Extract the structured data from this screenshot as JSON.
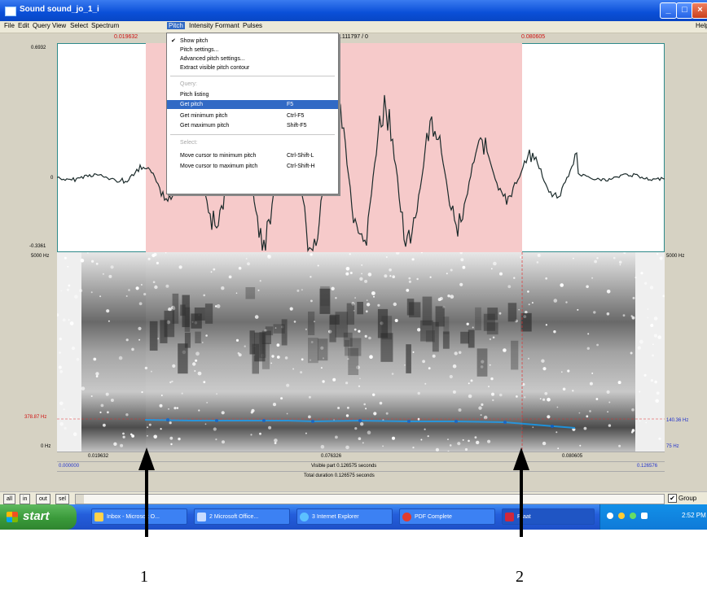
{
  "window": {
    "title": "Sound sound_jo_1_i",
    "buttons": [
      "_",
      "□",
      "×"
    ]
  },
  "menubar": {
    "items": [
      "File",
      "Edit",
      "Query",
      "View",
      "Select",
      "Spectrum",
      "Pitch",
      "Intensity",
      "Formant",
      "Pulses"
    ],
    "active": "Pitch",
    "help": "Help"
  },
  "editor": {
    "top_left_time": "0.019632",
    "top_center": "0.111797 / 0",
    "top_right_time": "0.080605",
    "wave_max": "0.6932",
    "wave_zero": "0",
    "wave_min": "-0.3361",
    "spec_top_left": "5000 Hz",
    "spec_top_right": "5000 Hz",
    "pitch_cursor_left": "378.87 Hz",
    "pitch_bottom_left": "0 Hz",
    "pitch_right_top": "140.36 Hz",
    "pitch_right_bottom": "75 Hz",
    "sel_start": "0.019632",
    "sel_mid": "0.076326",
    "sel_end": "0.080605",
    "visible_left": "0.000000",
    "visible_text": "Visible part 0.126575 seconds",
    "visible_right": "0.126576",
    "total_text": "Total duration 0.126575 seconds"
  },
  "pitch_menu": {
    "items": [
      {
        "label": "Show pitch",
        "shortcut": "",
        "checked": true
      },
      {
        "label": "Pitch settings...",
        "shortcut": ""
      },
      {
        "label": "Advanced pitch settings...",
        "shortcut": ""
      },
      {
        "label": "Extract visible pitch contour",
        "shortcut": ""
      },
      {
        "label": "Query:",
        "shortcut": "",
        "disabled": true
      },
      {
        "label": "Pitch listing",
        "shortcut": ""
      },
      {
        "label": "Get pitch",
        "shortcut": "F5",
        "highlighted": true
      },
      {
        "label": "Get minimum pitch",
        "shortcut": "Ctrl-F5"
      },
      {
        "label": "Get maximum pitch",
        "shortcut": "Shift-F5"
      },
      {
        "label": "Select:",
        "shortcut": "",
        "disabled": true
      },
      {
        "label": "Move cursor to minimum pitch",
        "shortcut": "Ctrl-Shift-L"
      },
      {
        "label": "Move cursor to maximum pitch",
        "shortcut": "Ctrl-Shift-H"
      }
    ]
  },
  "controls": {
    "buttons": [
      "all",
      "in",
      "out",
      "sel"
    ],
    "group_label": "Group",
    "group_checked": true
  },
  "taskbar": {
    "start": "start",
    "tasks": [
      "Inbox - Microsoft O...",
      "2 Microsoft Office...",
      "3 Internet Explorer",
      "PDF Complete",
      "Praat"
    ],
    "clock": "2:52 PM"
  },
  "annotations": {
    "arrow1": "1",
    "arrow2": "2"
  },
  "colors": {
    "selection": "#f6caca",
    "pitch_line": "#1e90d8",
    "menu_highlight": "#316ac5"
  }
}
